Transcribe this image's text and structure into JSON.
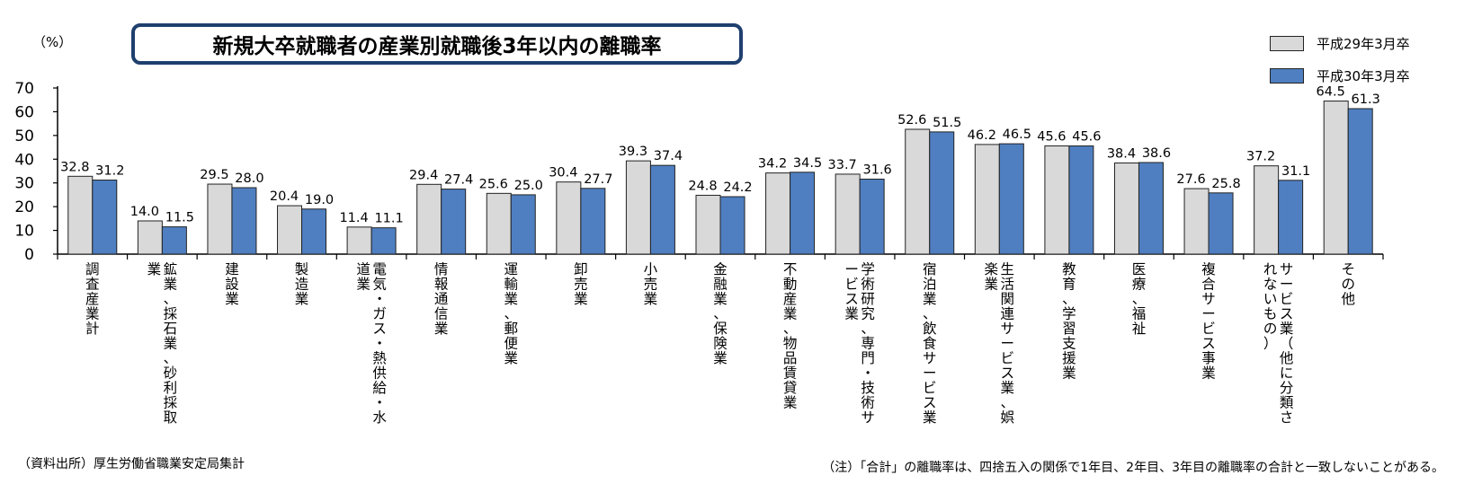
{
  "chart_data": {
    "type": "bar",
    "title": "新規大卒就職者の産業別就職後3年以内の離職率",
    "ylabel": "（%）",
    "ylim": [
      0,
      70
    ],
    "yticks": [
      "0",
      "10",
      "20",
      "30",
      "40",
      "50",
      "60",
      "70"
    ],
    "legend_position": "top-right",
    "categories": [
      [
        "調",
        "査",
        "産",
        "業",
        "計"
      ],
      [
        "鉱",
        "業",
        "、",
        "採",
        "石",
        "業",
        "、",
        "砂",
        "利",
        "採",
        "取",
        "業"
      ],
      [
        "建",
        "設",
        "業"
      ],
      [
        "製",
        "造",
        "業"
      ],
      [
        "電",
        "気",
        "・",
        "ガ",
        "ス",
        "・",
        "熱",
        "供",
        "給",
        "・",
        "水",
        "道",
        "業"
      ],
      [
        "情",
        "報",
        "通",
        "信",
        "業"
      ],
      [
        "運",
        "輸",
        "業",
        "、",
        "郵",
        "便",
        "業"
      ],
      [
        "卸",
        "売",
        "業"
      ],
      [
        "小",
        "売",
        "業"
      ],
      [
        "金",
        "融",
        "業",
        "、",
        "保",
        "険",
        "業"
      ],
      [
        "不",
        "動",
        "産",
        "業",
        "、",
        "物",
        "品",
        "賃",
        "貸",
        "業"
      ],
      [
        "学",
        "術",
        "研",
        "究",
        "、",
        "専",
        "門",
        "・",
        "技",
        "術",
        "サ",
        "ー",
        "ビ",
        "ス",
        "業"
      ],
      [
        "宿",
        "泊",
        "業",
        "、",
        "飲",
        "食",
        "サ",
        "ー",
        "ビ",
        "ス",
        "業"
      ],
      [
        "生",
        "活",
        "関",
        "連",
        "サ",
        "ー",
        "ビ",
        "ス",
        "業",
        "、",
        "娯",
        "楽",
        "業"
      ],
      [
        "教",
        "育",
        "、",
        "学",
        "習",
        "支",
        "援",
        "業"
      ],
      [
        "医",
        "療",
        "、",
        "福",
        "祉"
      ],
      [
        "複",
        "合",
        "サ",
        "ー",
        "ビ",
        "ス",
        "事",
        "業"
      ],
      [
        "サ",
        "ー",
        "ビ",
        "ス",
        "業",
        "（",
        "他",
        "に",
        "分",
        "類",
        "さ",
        "れ",
        "な",
        "い",
        "も",
        "の",
        "）"
      ],
      [
        "そ",
        "の",
        "他"
      ]
    ],
    "series": [
      {
        "name": "平成29年3月卒",
        "color": "#d9d9d9",
        "values": [
          32.8,
          14.0,
          29.5,
          20.4,
          11.4,
          29.4,
          25.6,
          30.4,
          39.3,
          24.8,
          34.2,
          33.7,
          52.6,
          46.2,
          45.6,
          38.4,
          27.6,
          37.2,
          64.5
        ],
        "labels": [
          "32.8",
          "14.0",
          "29.5",
          "20.4",
          "11.4",
          "29.4",
          "25.6",
          "30.4",
          "39.3",
          "24.8",
          "34.2",
          "33.7",
          "52.6",
          "46.2",
          "45.6",
          "38.4",
          "27.6",
          "37.2",
          "64.5"
        ]
      },
      {
        "name": "平成30年3月卒",
        "color": "#4f7fc1",
        "values": [
          31.2,
          11.5,
          28.0,
          19.0,
          11.1,
          27.4,
          25.0,
          27.7,
          37.4,
          24.2,
          34.5,
          31.6,
          51.5,
          46.5,
          45.6,
          38.6,
          25.8,
          31.1,
          61.3
        ],
        "labels": [
          "31.2",
          "11.5",
          "28.0",
          "19.0",
          "11.1",
          "27.4",
          "25.0",
          "27.7",
          "37.4",
          "24.2",
          "34.5",
          "31.6",
          "51.5",
          "46.5",
          "45.6",
          "38.6",
          "25.8",
          "31.1",
          "61.3"
        ]
      }
    ]
  },
  "source_note": "（資料出所）厚生労働省職業安定局集計",
  "footnote": "（注）「合計」の離職率は、四捨五入の関係で1年目、2年目、3年目の離職率の合計と一致しないことがある。"
}
